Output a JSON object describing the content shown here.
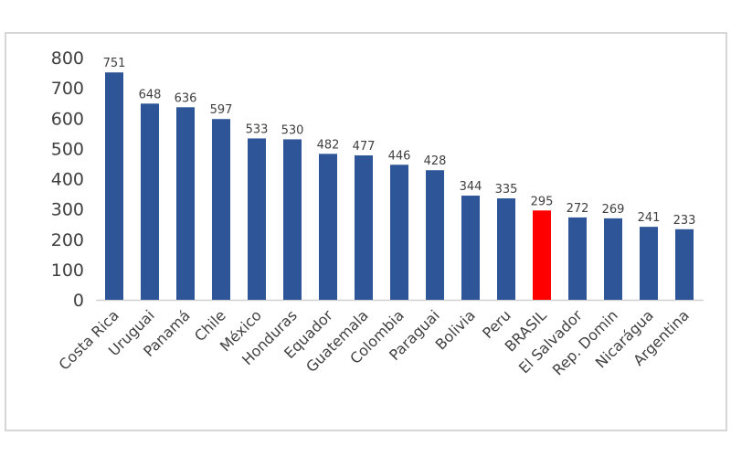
{
  "chart_data": {
    "type": "bar",
    "title": "",
    "xlabel": "",
    "ylabel": "",
    "ylim": [
      0,
      800
    ],
    "yticks": [
      0,
      100,
      200,
      300,
      400,
      500,
      600,
      700,
      800
    ],
    "grid": false,
    "categories": [
      "Costa Rica",
      "Uruguai",
      "Panamá",
      "Chile",
      "México",
      "Honduras",
      "Equador",
      "Guatemala",
      "Colombia",
      "Paraguai",
      "Bolivia",
      "Peru",
      "BRASIL",
      "El Salvador",
      "Rep. Domin",
      "Nicarágua",
      "Argentina"
    ],
    "values": [
      751,
      648,
      636,
      597,
      533,
      530,
      482,
      477,
      446,
      428,
      344,
      335,
      295,
      272,
      269,
      241,
      233
    ],
    "colors": {
      "default": "#2e5597",
      "highlight": "#ff0000",
      "highlight_category": "BRASIL"
    },
    "data_labels": true
  }
}
